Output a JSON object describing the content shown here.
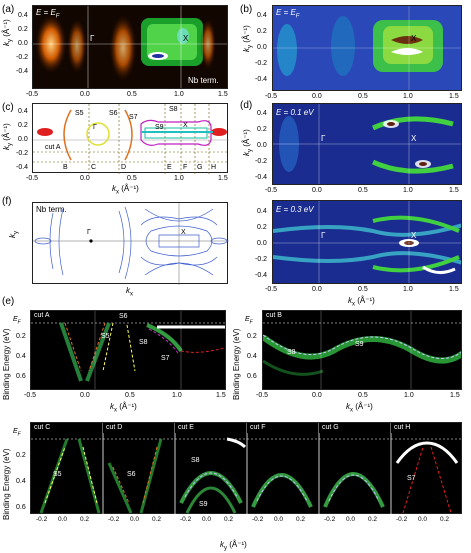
{
  "panels": {
    "a": {
      "label": "(a)",
      "energy": "E = E",
      "energy_sub": "F",
      "gamma": "Γ",
      "xpoint": "X",
      "termination": "Nb term.",
      "ylabel": "k",
      "ylabel_sub": "y",
      "ylabel_unit": "(Å⁻¹)",
      "yticks": [
        "0.4",
        "0.2",
        "0.0",
        "-0.2",
        "-0.4"
      ],
      "xticks": [
        "-0.5",
        "0.0",
        "0.5",
        "1.0",
        "1.5"
      ]
    },
    "b": {
      "label": "(b)",
      "energy": "E = E",
      "energy_sub": "F",
      "xpoint": "X",
      "ylabel": "k",
      "ylabel_sub": "y",
      "ylabel_unit": "(Å⁻¹)",
      "yticks": [
        "0.4",
        "0.2",
        "0.0",
        "-0.2",
        "-0.4"
      ],
      "xticks": [
        "-0.5",
        "0.0",
        "0.5",
        "1.0",
        "1.5"
      ]
    },
    "c": {
      "label": "(c)",
      "gamma": "Γ",
      "xpoint": "X",
      "ylabel": "k",
      "ylabel_sub": "y",
      "ylabel_unit": "(Å⁻¹)",
      "xlabel": "k",
      "xlabel_sub": "x",
      "xlabel_unit": "(Å⁻¹)",
      "yticks": [
        "0.4",
        "0.2",
        "0.0",
        "-0.2",
        "-0.4"
      ],
      "xticks": [
        "-0.5",
        "0.0",
        "0.5",
        "1.0",
        "1.5"
      ],
      "bands": [
        "S5",
        "S6",
        "S7",
        "S8",
        "S9"
      ],
      "cuts": [
        "cut A",
        "B",
        "C",
        "D",
        "E",
        "F",
        "G",
        "H"
      ]
    },
    "d": {
      "label": "(d)",
      "energy": "E = 0.1 eV",
      "gamma": "Γ",
      "xpoint": "X",
      "ylabel": "k",
      "ylabel_sub": "y",
      "ylabel_unit": "(Å⁻¹)",
      "yticks": [
        "0.4",
        "0.2",
        "0.0",
        "-0.2",
        "-0.4"
      ],
      "xticks": [
        "-0.5",
        "0.0",
        "0.5",
        "1.0",
        "1.5"
      ]
    },
    "d2": {
      "energy": "E = 0.3 eV",
      "gamma": "Γ",
      "xpoint": "X",
      "yticks": [
        "0.4",
        "0.2",
        "0.0",
        "-0.2",
        "-0.4"
      ],
      "xticks": [
        "-0.5",
        "0.0",
        "0.5",
        "1.0",
        "1.5"
      ],
      "xlabel": "k",
      "xlabel_sub": "x",
      "xlabel_unit": "(Å⁻¹)"
    },
    "f": {
      "label": "(f)",
      "termination": "Nb term.",
      "gamma": "Γ",
      "xpoint": "X",
      "ylabel": "k",
      "ylabel_sub": "y",
      "xlabel": "k",
      "xlabel_sub": "x"
    },
    "e": {
      "label": "(e)",
      "ylabel": "Binding Energy (eV)",
      "ef": "E",
      "ef_sub": "F",
      "yticks": [
        "0.2",
        "0.4",
        "0.6"
      ],
      "cutA": {
        "title": "cut A",
        "bands": [
          "S6",
          "S5",
          "S8",
          "S7"
        ],
        "xticks": [
          "-0.5",
          "0.0",
          "0.5",
          "1.0",
          "1.5"
        ]
      },
      "cutB": {
        "title": "cut B",
        "bands": [
          "S8",
          "S9"
        ],
        "xticks": [
          "-0.5",
          "0.0",
          "0.5",
          "1.0",
          "1.5"
        ]
      },
      "xlabel": "k",
      "xlabel_sub": "x",
      "xlabel_unit": "(Å⁻¹)",
      "bottom": {
        "cuts": [
          {
            "title": "cut C",
            "bands": [
              "S5"
            ]
          },
          {
            "title": "cut D",
            "bands": [
              "S6"
            ]
          },
          {
            "title": "cut E",
            "bands": [
              "S8",
              "S9"
            ]
          },
          {
            "title": "cut F",
            "bands": []
          },
          {
            "title": "cut G",
            "bands": []
          },
          {
            "title": "cut H",
            "bands": [
              "S7"
            ]
          }
        ],
        "xticks": [
          "-0.2",
          "0.0",
          "0.2"
        ],
        "xlabel": "k",
        "xlabel_sub": "y",
        "xlabel_unit": "(Å⁻¹)"
      }
    }
  },
  "colors": {
    "hot_bg": "#1a0a00",
    "blue_bg": "#1b2f8f",
    "green": "#3ad04a",
    "cut_dash": "#6b5a00"
  }
}
